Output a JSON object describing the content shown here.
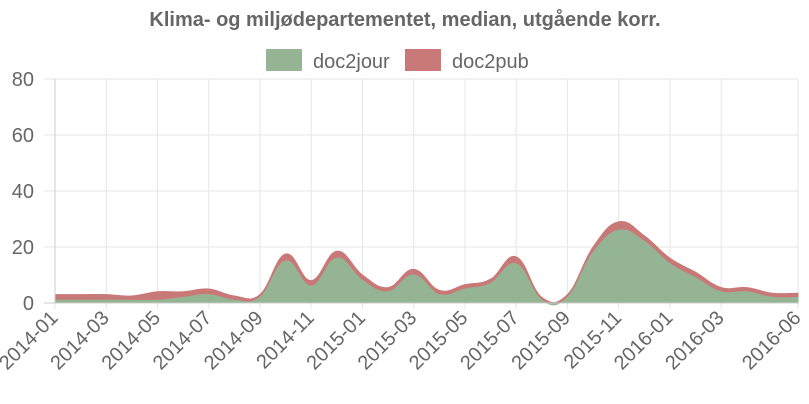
{
  "chart_data": {
    "type": "area",
    "stacked": true,
    "title": "Klima- og miljødepartementet, median, utgående korr.",
    "xlabel": "",
    "ylabel": "",
    "ylim": [
      0,
      80
    ],
    "yticks": [
      0,
      20,
      40,
      60,
      80
    ],
    "grid": true,
    "legend_position": "top-center",
    "x": [
      "2014-01",
      "2014-02",
      "2014-03",
      "2014-04",
      "2014-05",
      "2014-06",
      "2014-07",
      "2014-08",
      "2014-09",
      "2014-10",
      "2014-11",
      "2014-12",
      "2015-01",
      "2015-02",
      "2015-03",
      "2015-04",
      "2015-05",
      "2015-06",
      "2015-07",
      "2015-08",
      "2015-09",
      "2015-10",
      "2015-11",
      "2015-12",
      "2016-01",
      "2016-02",
      "2016-03",
      "2016-04",
      "2016-05",
      "2016-06"
    ],
    "x_tick_labels": [
      "2014-01",
      "2014-03",
      "2014-05",
      "2014-07",
      "2014-09",
      "2014-11",
      "2015-01",
      "2015-03",
      "2015-05",
      "2015-07",
      "2015-09",
      "2015-11",
      "2016-01",
      "2016-03",
      "2016-06"
    ],
    "series": [
      {
        "name": "doc2jour",
        "color": "#94b494",
        "values": [
          1,
          1,
          1,
          1,
          1,
          2,
          3,
          1,
          2,
          15,
          6,
          16,
          8,
          4,
          10,
          3,
          5,
          7,
          14,
          1,
          2,
          18,
          26,
          22,
          14,
          9,
          4,
          4,
          2,
          2
        ]
      },
      {
        "name": "doc2pub",
        "color": "#c97878",
        "values": [
          2,
          2,
          2,
          1.5,
          3,
          2,
          2,
          1.5,
          1,
          2.5,
          2,
          2.5,
          2,
          1.5,
          2,
          1.5,
          1.5,
          1.5,
          2.5,
          1,
          1,
          2,
          3,
          2,
          2,
          2,
          1.5,
          1.5,
          1.5,
          1.5
        ]
      }
    ]
  }
}
